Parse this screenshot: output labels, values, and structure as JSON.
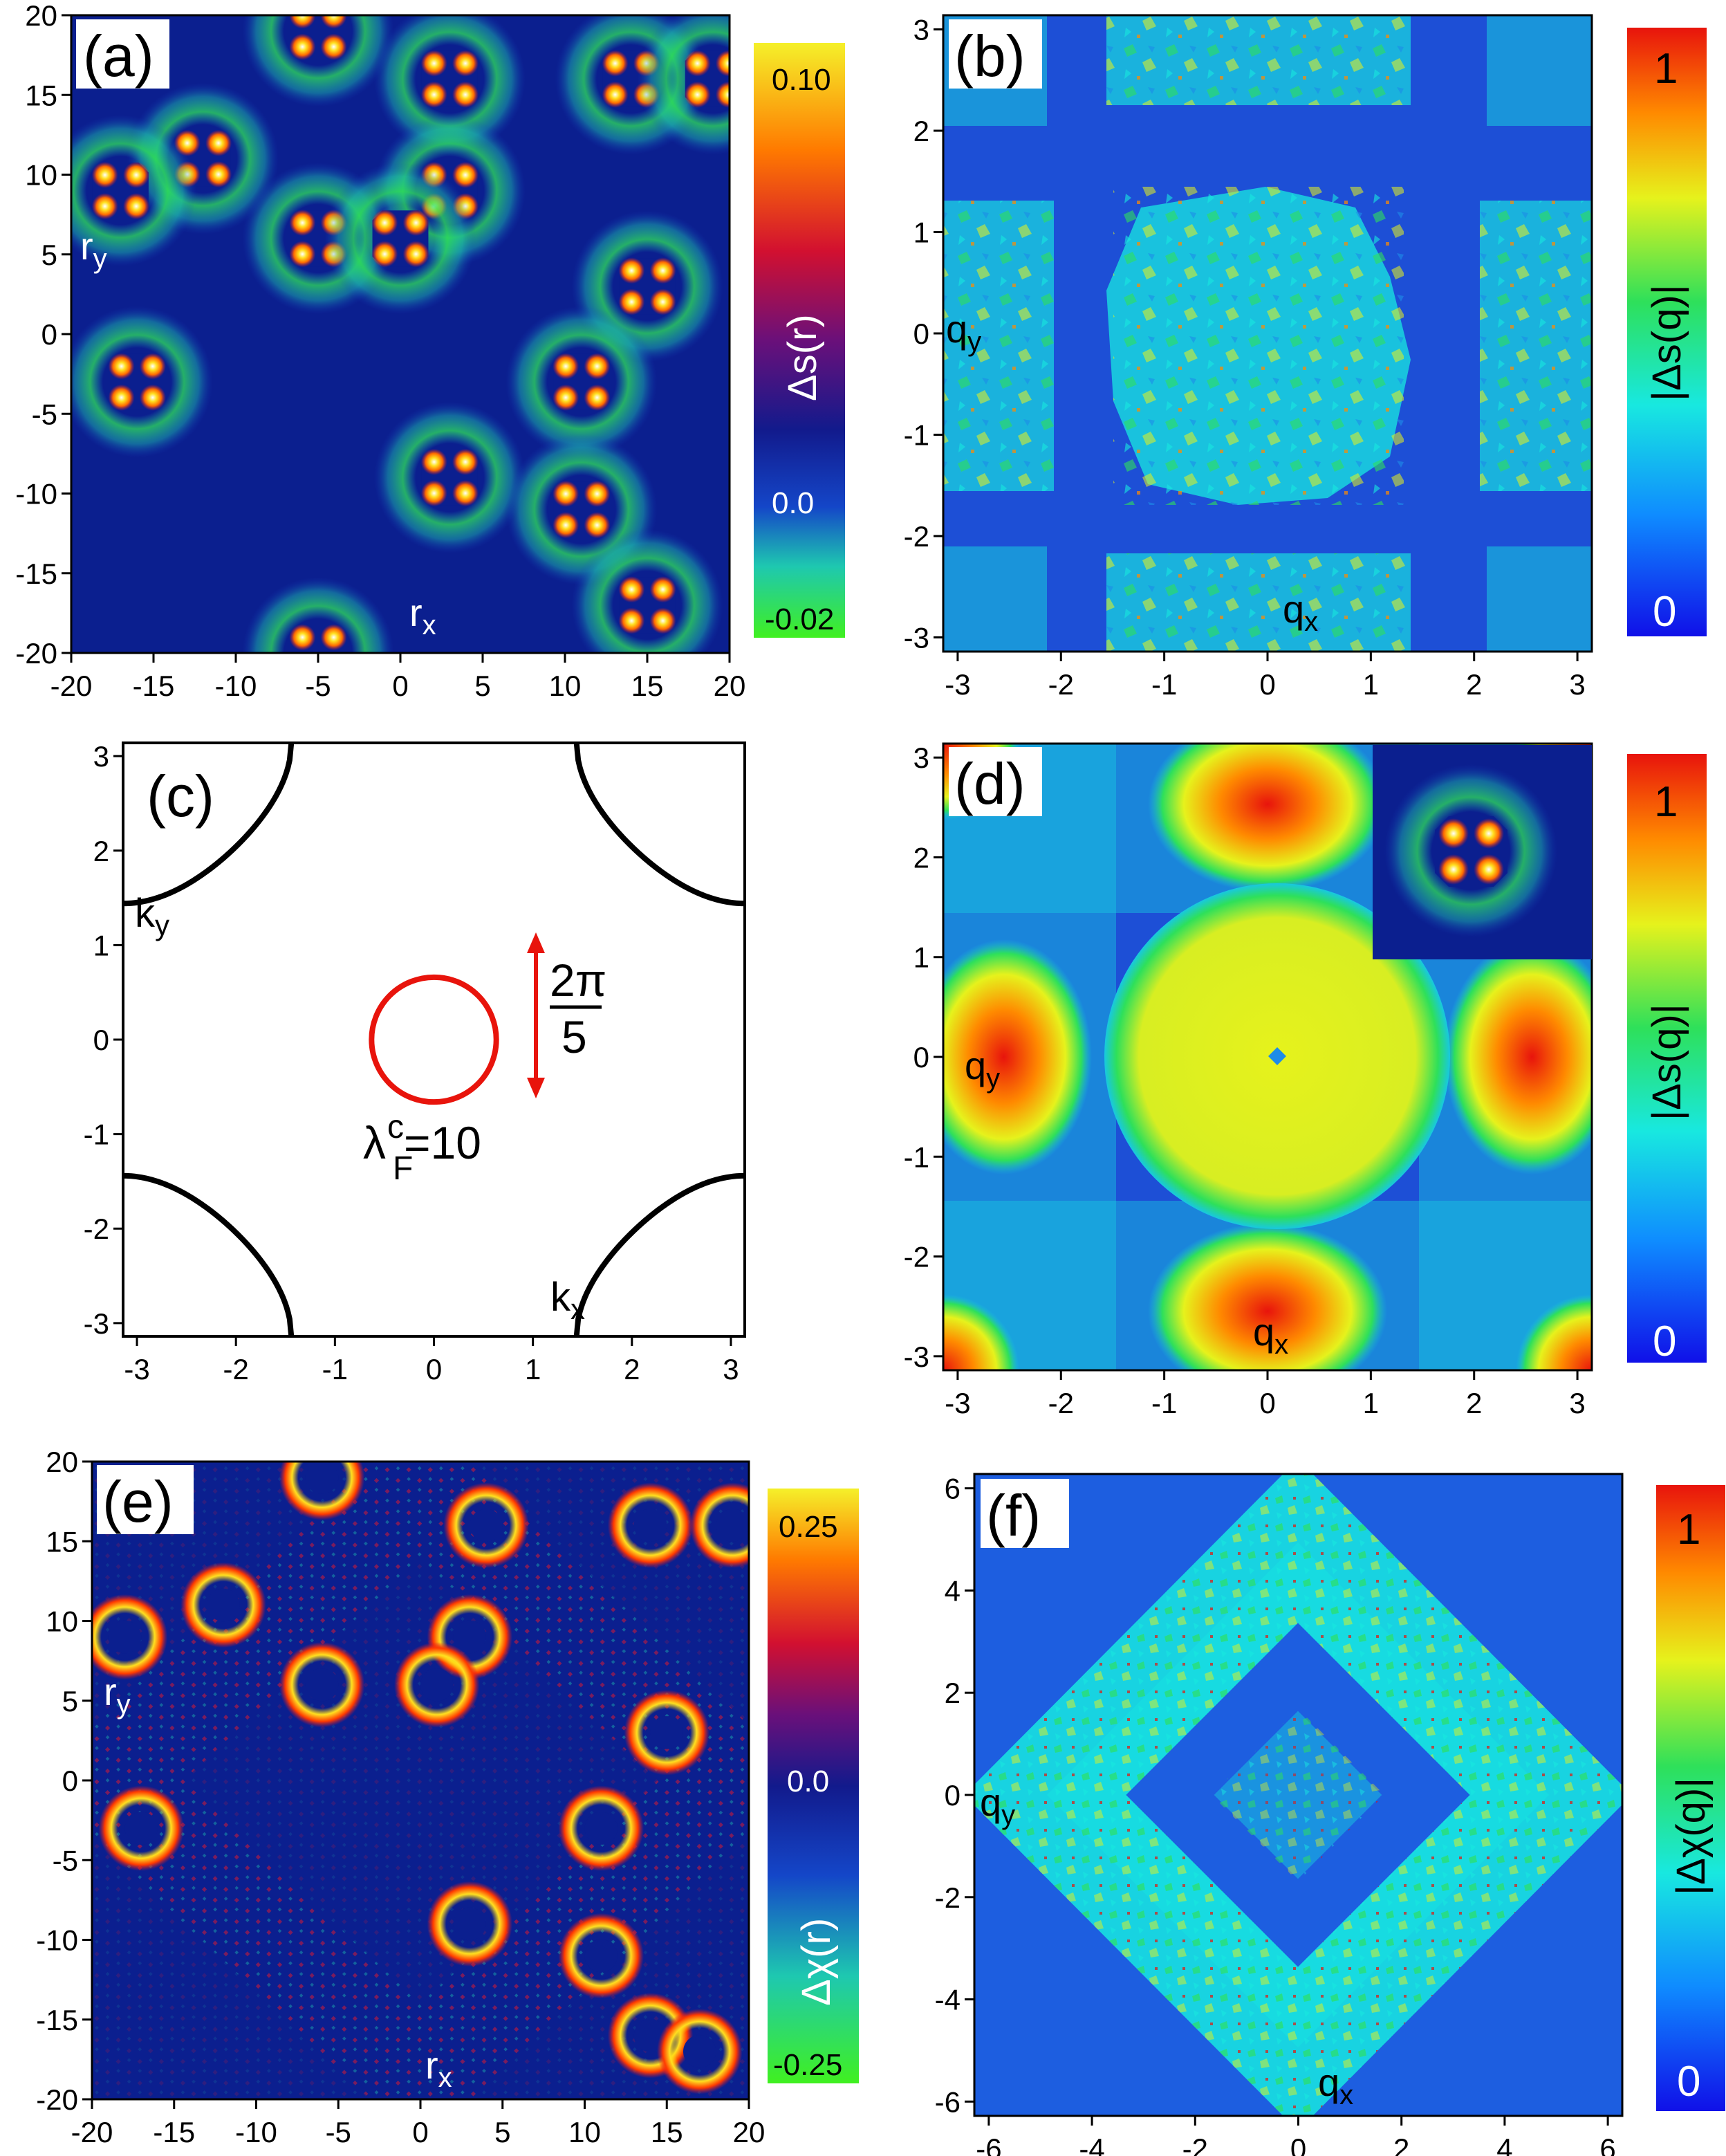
{
  "colors": {
    "dark_blue": "#0b1f8f",
    "mid_blue": "#1d4fd6",
    "cyan": "#26c9e8",
    "green": "#2ee05a",
    "yellow": "#e6f21c",
    "orange": "#ff8a00",
    "red": "#e8160c",
    "white": "#ffffff"
  },
  "chart_data": [
    {
      "panel": "(a)",
      "type": "heatmap",
      "xlabel": "rx",
      "ylabel": "ry",
      "xlim": [
        -20,
        20
      ],
      "ylim": [
        -20,
        20
      ],
      "x_ticks": [
        "-20",
        "-15",
        "-10",
        "-5",
        "0",
        "5",
        "10",
        "15",
        "20"
      ],
      "y_ticks": [
        "20",
        "15",
        "10",
        "5",
        "0",
        "-5",
        "-10",
        "-15",
        "-20"
      ],
      "colorbar": {
        "label": "Δs(r)",
        "ticks": [
          "0.10",
          "0.0",
          "-0.02"
        ],
        "range": [
          -0.02,
          0.1
        ]
      },
      "impurity_centers": [
        [
          -5,
          19
        ],
        [
          3,
          16
        ],
        [
          14,
          16
        ],
        [
          19,
          16
        ],
        [
          -12,
          11
        ],
        [
          -17,
          9
        ],
        [
          3,
          9
        ],
        [
          -5,
          6
        ],
        [
          0,
          6
        ],
        [
          15,
          3
        ],
        [
          -16,
          -3
        ],
        [
          11,
          -3
        ],
        [
          3,
          -9
        ],
        [
          11,
          -11
        ],
        [
          15,
          -17
        ],
        [
          -5,
          -20
        ]
      ]
    },
    {
      "panel": "(b)",
      "type": "heatmap",
      "xlabel": "qx",
      "ylabel": "qy",
      "xlim": [
        -3.14,
        3.14
      ],
      "ylim": [
        -3.14,
        3.14
      ],
      "x_ticks": [
        "-3",
        "-2",
        "-1",
        "0",
        "1",
        "2",
        "3"
      ],
      "y_ticks": [
        "3",
        "2",
        "1",
        "0",
        "-1",
        "-2",
        "-3"
      ],
      "colorbar": {
        "label": "|Δs(q)|",
        "ticks": [
          "1",
          "0"
        ],
        "range": [
          0,
          1
        ]
      }
    },
    {
      "panel": "(c)",
      "type": "line",
      "xlabel": "kx",
      "ylabel": "ky",
      "xlim": [
        -3.14,
        3.14
      ],
      "ylim": [
        -3.14,
        3.14
      ],
      "x_ticks": [
        "-3",
        "-2",
        "-1",
        "0",
        "1",
        "2",
        "3"
      ],
      "y_ticks": [
        "3",
        "2",
        "1",
        "0",
        "-1",
        "-2",
        "-3"
      ],
      "fermi_surface": "cos(kx)+cos(ky)=-0.87",
      "circle": {
        "center": [
          0,
          0
        ],
        "radius_kx": 0.63,
        "radius_ky": 0.63,
        "color": "red"
      },
      "annotation_fraction": {
        "numerator": "2π",
        "denominator": "5"
      },
      "annotation_lambda": {
        "symbol": "λ",
        "superscript": "c",
        "subscript": "F",
        "value": "=10"
      }
    },
    {
      "panel": "(d)",
      "type": "heatmap",
      "xlabel": "qx",
      "ylabel": "qy",
      "xlim": [
        -3.14,
        3.14
      ],
      "ylim": [
        -3.14,
        3.14
      ],
      "x_ticks": [
        "-3",
        "-2",
        "-1",
        "0",
        "1",
        "2",
        "3"
      ],
      "y_ticks": [
        "3",
        "2",
        "1",
        "0",
        "-1",
        "-2",
        "-3"
      ],
      "colorbar": {
        "label": "|Δs(q)|",
        "ticks": [
          "1",
          "0"
        ],
        "range": [
          0,
          1
        ]
      }
    },
    {
      "panel": "(e)",
      "type": "heatmap",
      "xlabel": "rx",
      "ylabel": "ry",
      "xlim": [
        -20,
        20
      ],
      "ylim": [
        -20,
        20
      ],
      "x_ticks": [
        "-20",
        "-15",
        "-10",
        "-5",
        "0",
        "5",
        "10",
        "15",
        "20"
      ],
      "y_ticks": [
        "20",
        "15",
        "10",
        "5",
        "0",
        "-5",
        "-10",
        "-15",
        "-20"
      ],
      "colorbar": {
        "label": "Δχ(r)",
        "ticks": [
          "0.25",
          "0.0",
          "-0.25"
        ],
        "range": [
          -0.25,
          0.25
        ]
      },
      "impurity_centers": [
        [
          -6,
          19
        ],
        [
          4,
          16
        ],
        [
          14,
          16
        ],
        [
          19,
          16
        ],
        [
          -12,
          11
        ],
        [
          -18,
          9
        ],
        [
          3,
          9
        ],
        [
          -6,
          6
        ],
        [
          1,
          6
        ],
        [
          15,
          3
        ],
        [
          -17,
          -3
        ],
        [
          11,
          -3
        ],
        [
          3,
          -9
        ],
        [
          11,
          -11
        ],
        [
          14,
          -16
        ],
        [
          17,
          -17
        ]
      ]
    },
    {
      "panel": "(f)",
      "type": "heatmap",
      "xlabel": "qx",
      "ylabel": "qy",
      "xlim": [
        -6.28,
        6.28
      ],
      "ylim": [
        -6.28,
        6.28
      ],
      "x_ticks": [
        "-6",
        "-4",
        "-2",
        "0",
        "2",
        "4",
        "6"
      ],
      "y_ticks": [
        "6",
        "4",
        "2",
        "0",
        "-2",
        "-4",
        "-6"
      ],
      "colorbar": {
        "label": "|Δχ(q)|",
        "ticks": [
          "1",
          "0"
        ],
        "range": [
          0,
          1
        ]
      }
    }
  ],
  "panels_text": {
    "a": {
      "tag": "(a)",
      "xl": "r",
      "xs": "x",
      "yl": "r",
      "ys": "y"
    },
    "b": {
      "tag": "(b)",
      "xl": "q",
      "xs": "x",
      "yl": "q",
      "ys": "y"
    },
    "c": {
      "tag": "(c)",
      "xl": "k",
      "xs": "x",
      "yl": "k",
      "ys": "y"
    },
    "d": {
      "tag": "(d)",
      "xl": "q",
      "xs": "x",
      "yl": "q",
      "ys": "y"
    },
    "e": {
      "tag": "(e)",
      "xl": "r",
      "xs": "x",
      "yl": "r",
      "ys": "y"
    },
    "f": {
      "tag": "(f)",
      "xl": "q",
      "xs": "x",
      "yl": "q",
      "ys": "y"
    }
  }
}
